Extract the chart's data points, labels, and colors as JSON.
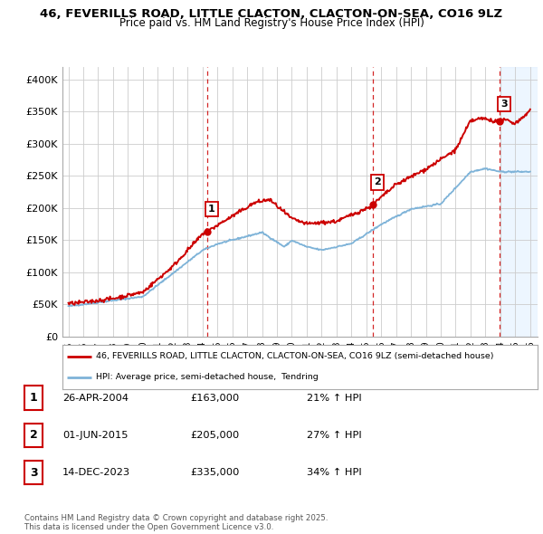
{
  "title_line1": "46, FEVERILLS ROAD, LITTLE CLACTON, CLACTON-ON-SEA, CO16 9LZ",
  "title_line2": "Price paid vs. HM Land Registry's House Price Index (HPI)",
  "ylim": [
    0,
    420000
  ],
  "yticks": [
    0,
    50000,
    100000,
    150000,
    200000,
    250000,
    300000,
    350000,
    400000
  ],
  "ytick_labels": [
    "£0",
    "£50K",
    "£100K",
    "£150K",
    "£200K",
    "£250K",
    "£300K",
    "£350K",
    "£400K"
  ],
  "sales_dates": [
    2004.32,
    2015.42,
    2023.95
  ],
  "sales_prices": [
    163000,
    205000,
    335000
  ],
  "sales_labels": [
    "1",
    "2",
    "3"
  ],
  "sale_rows": [
    {
      "num": "1",
      "date": "26-APR-2004",
      "price": "£163,000",
      "hpi": "21% ↑ HPI"
    },
    {
      "num": "2",
      "date": "01-JUN-2015",
      "price": "£205,000",
      "hpi": "27% ↑ HPI"
    },
    {
      "num": "3",
      "date": "14-DEC-2023",
      "price": "£335,000",
      "hpi": "34% ↑ HPI"
    }
  ],
  "legend_line1": "46, FEVERILLS ROAD, LITTLE CLACTON, CLACTON-ON-SEA, CO16 9LZ (semi-detached house)",
  "legend_line2": "HPI: Average price, semi-detached house,  Tendring",
  "footer": "Contains HM Land Registry data © Crown copyright and database right 2025.\nThis data is licensed under the Open Government Licence v3.0.",
  "price_color": "#cc0000",
  "hpi_color": "#7eb3d8",
  "vline_color": "#cc0000",
  "bg_color": "#ffffff",
  "grid_color": "#cccccc",
  "shade_color": "#ddeeff"
}
